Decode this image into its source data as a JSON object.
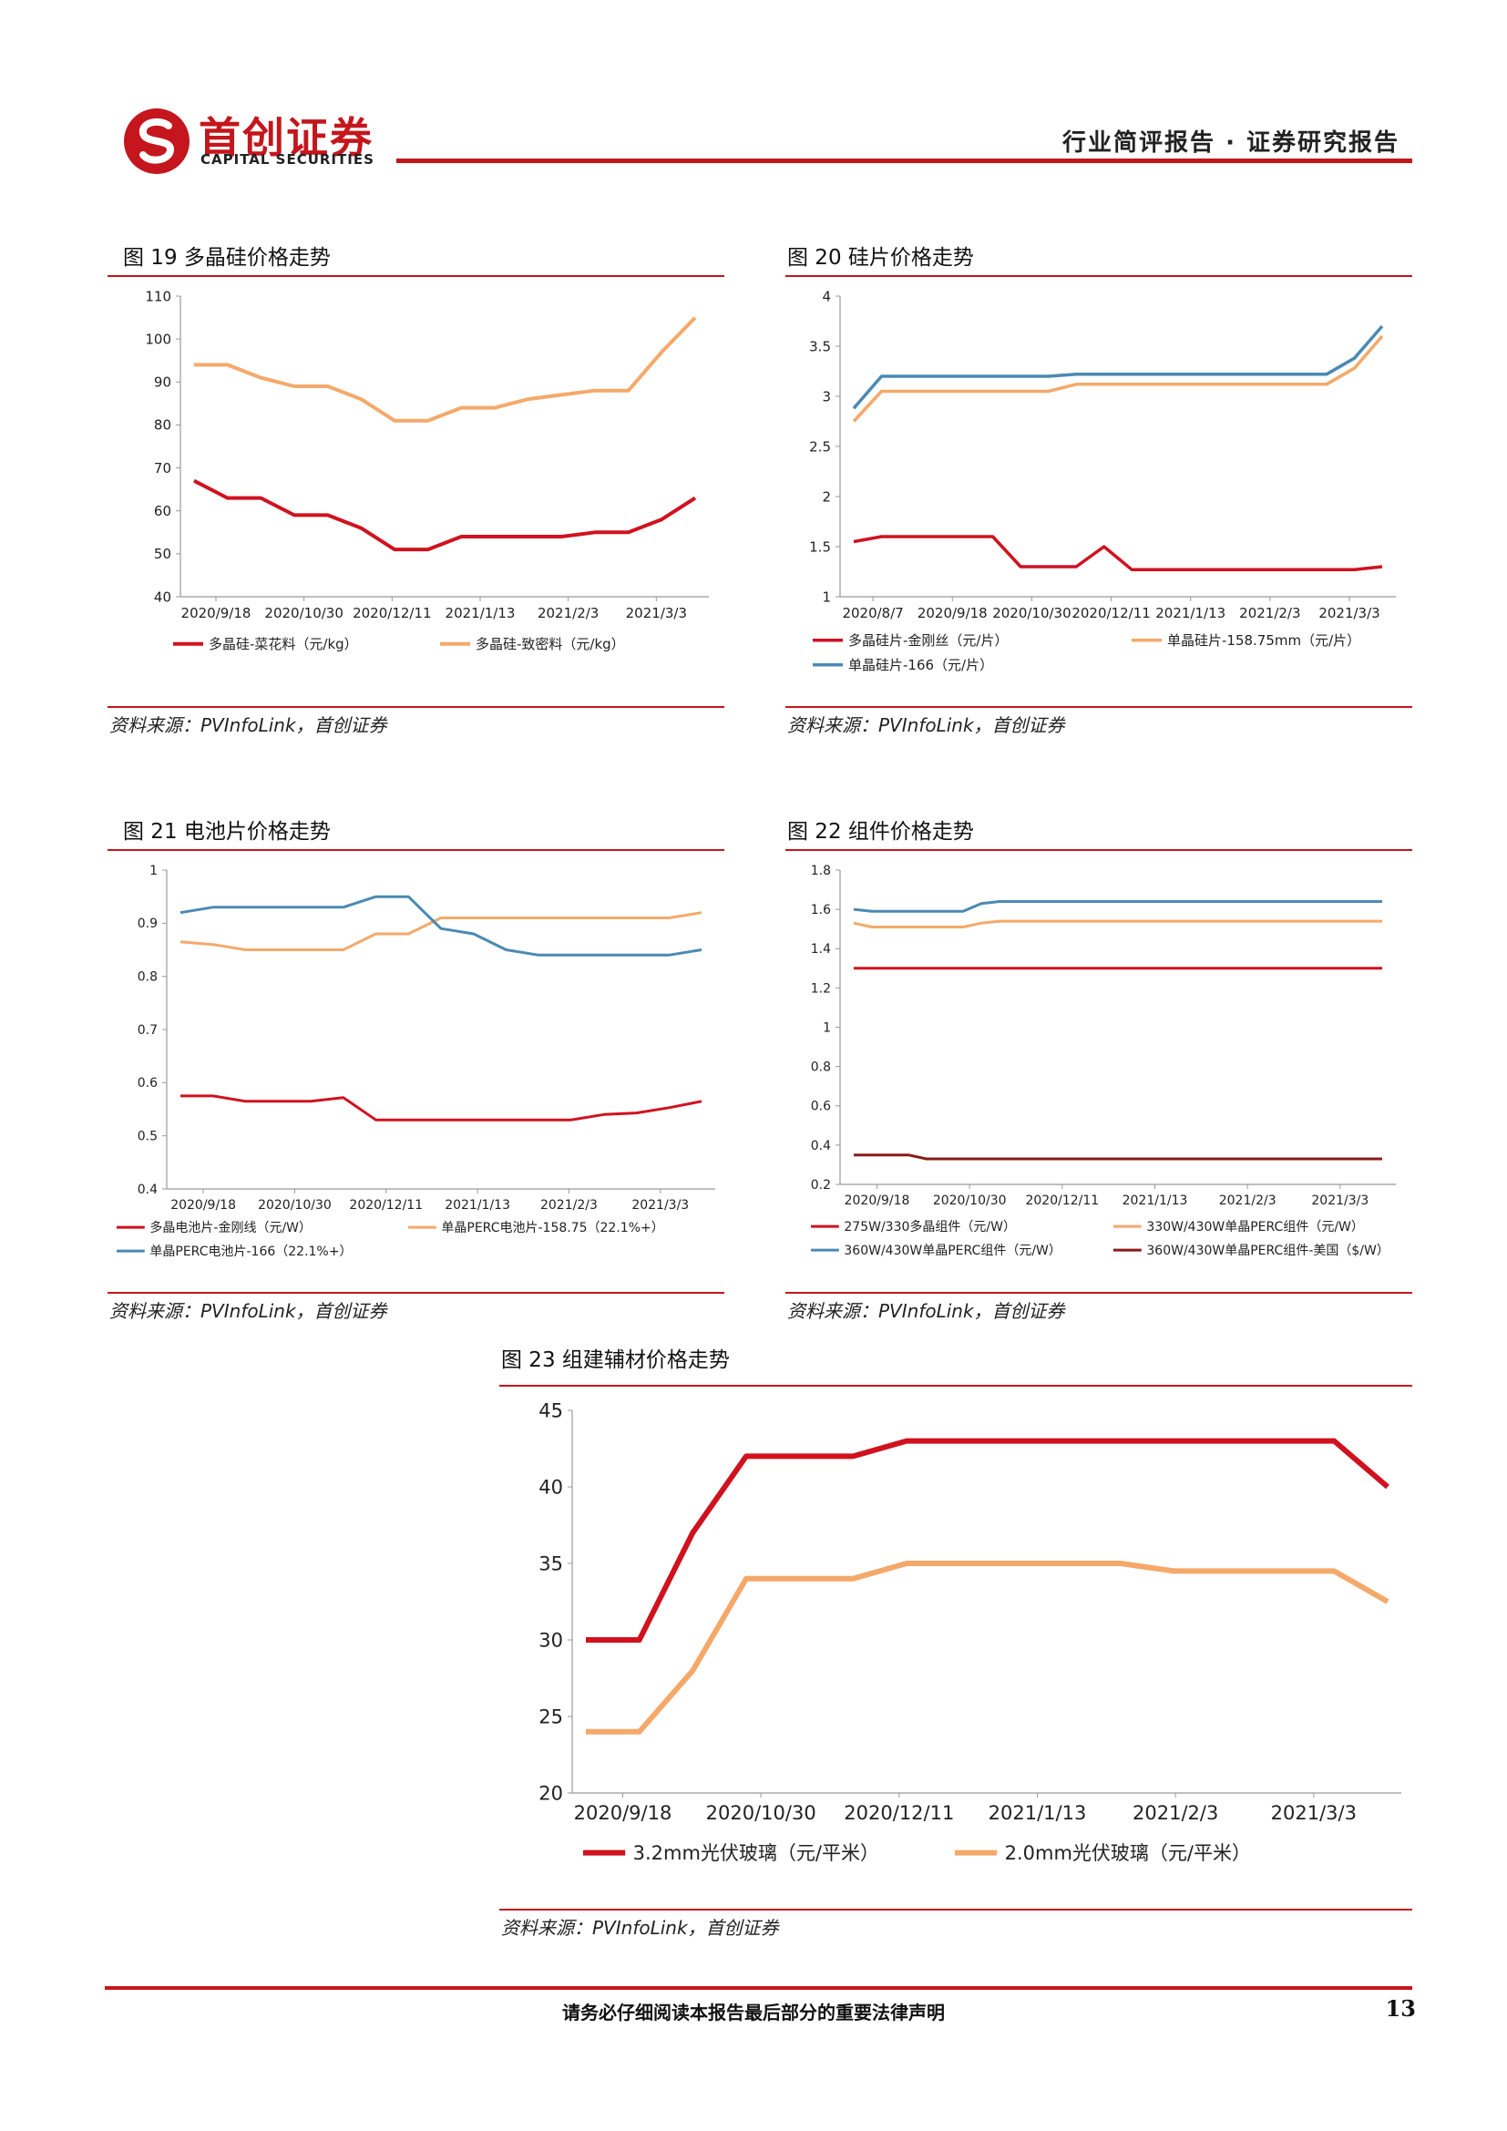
{
  "header": {
    "brand_cn": "首创证券",
    "brand_en": "CAPITAL SECURITIES",
    "report_type": "行业简评报告 · 证券研究报告",
    "brand_color": "#c4161c"
  },
  "figures": [
    {
      "title": "图 19 多晶硅价格走势",
      "source": "资料来源：PVInfoLink，首创证券"
    },
    {
      "title": "图 20 硅片价格走势",
      "source": "资料来源：PVInfoLink，首创证券"
    },
    {
      "title": "图 21 电池片价格走势",
      "source": "资料来源：PVInfoLink，首创证券"
    },
    {
      "title": "图 22 组件价格走势",
      "source": "资料来源：PVInfoLink，首创证券"
    },
    {
      "title": "图 23 组建辅材价格走势",
      "source": "资料来源：PVInfoLink，首创证券"
    }
  ],
  "chart_data": [
    {
      "type": "line",
      "x_ticks": [
        "2020/9/18",
        "2020/10/30",
        "2020/12/11",
        "2021/1/13",
        "2021/2/3",
        "2021/3/3"
      ],
      "ylim": [
        40,
        110
      ],
      "y_ticks": [
        40,
        50,
        60,
        70,
        80,
        90,
        100,
        110
      ],
      "legend": "bottom",
      "series": [
        {
          "name": "多晶硅-菜花料（元/kg）",
          "color": "#d0121f",
          "values": [
            67,
            63,
            63,
            59,
            59,
            56,
            51,
            51,
            54,
            54,
            54,
            54,
            55,
            55,
            58,
            63
          ]
        },
        {
          "name": "多晶硅-致密料（元/kg）",
          "color": "#f4a96a",
          "values": [
            94,
            94,
            91,
            89,
            89,
            86,
            81,
            81,
            84,
            84,
            86,
            87,
            88,
            88,
            97,
            105
          ]
        }
      ]
    },
    {
      "type": "line",
      "x_ticks": [
        "2020/8/7",
        "2020/9/18",
        "2020/10/30",
        "2020/12/11",
        "2021/1/13",
        "2021/2/3",
        "2021/3/3"
      ],
      "ylim": [
        1,
        4
      ],
      "y_ticks": [
        1,
        1.5,
        2,
        2.5,
        3,
        3.5,
        4
      ],
      "legend": "bottom",
      "series": [
        {
          "name": "多晶硅片-金刚丝（元/片）",
          "color": "#d0121f",
          "values": [
            1.55,
            1.6,
            1.6,
            1.6,
            1.6,
            1.6,
            1.3,
            1.3,
            1.3,
            1.5,
            1.27,
            1.27,
            1.27,
            1.27,
            1.27,
            1.27,
            1.27,
            1.27,
            1.27,
            1.3
          ]
        },
        {
          "name": "单晶硅片-158.75mm（元/片）",
          "color": "#f4a96a",
          "values": [
            2.75,
            3.05,
            3.05,
            3.05,
            3.05,
            3.05,
            3.05,
            3.05,
            3.12,
            3.12,
            3.12,
            3.12,
            3.12,
            3.12,
            3.12,
            3.12,
            3.12,
            3.12,
            3.28,
            3.6
          ]
        },
        {
          "name": "单晶硅片-166（元/片）",
          "color": "#4a8ab3",
          "values": [
            2.88,
            3.2,
            3.2,
            3.2,
            3.2,
            3.2,
            3.2,
            3.2,
            3.22,
            3.22,
            3.22,
            3.22,
            3.22,
            3.22,
            3.22,
            3.22,
            3.22,
            3.22,
            3.38,
            3.7
          ]
        }
      ]
    },
    {
      "type": "line",
      "x_ticks": [
        "2020/9/18",
        "2020/10/30",
        "2020/12/11",
        "2021/1/13",
        "2021/2/3",
        "2021/3/3"
      ],
      "ylim": [
        0.4,
        1
      ],
      "y_ticks": [
        0.4,
        0.5,
        0.6,
        0.7,
        0.8,
        0.9,
        1
      ],
      "legend": "bottom",
      "series": [
        {
          "name": "多晶电池片-金刚线（元/W）",
          "color": "#d0121f",
          "values": [
            0.575,
            0.575,
            0.565,
            0.565,
            0.565,
            0.572,
            0.53,
            0.53,
            0.53,
            0.53,
            0.53,
            0.53,
            0.53,
            0.54,
            0.543,
            0.553,
            0.565
          ]
        },
        {
          "name": "单晶PERC电池片-158.75（22.1%+）",
          "color": "#f4a96a",
          "values": [
            0.865,
            0.86,
            0.85,
            0.85,
            0.85,
            0.85,
            0.88,
            0.88,
            0.91,
            0.91,
            0.91,
            0.91,
            0.91,
            0.91,
            0.91,
            0.91,
            0.92
          ]
        },
        {
          "name": "单晶PERC电池片-166（22.1%+）",
          "color": "#4a8ab3",
          "values": [
            0.92,
            0.93,
            0.93,
            0.93,
            0.93,
            0.93,
            0.95,
            0.95,
            0.89,
            0.88,
            0.85,
            0.84,
            0.84,
            0.84,
            0.84,
            0.84,
            0.85
          ]
        }
      ]
    },
    {
      "type": "line",
      "x_ticks": [
        "2020/9/18",
        "2020/10/30",
        "2020/12/11",
        "2021/1/13",
        "2021/2/3",
        "2021/3/3"
      ],
      "ylim": [
        0.2,
        1.8
      ],
      "y_ticks": [
        0.2,
        0.4,
        0.6,
        0.8,
        1,
        1.2,
        1.4,
        1.6,
        1.8
      ],
      "legend": "bottom",
      "series": [
        {
          "name": "275W/330多晶组件（元/W）",
          "color": "#d0121f",
          "values": [
            1.3,
            1.3,
            1.3,
            1.3,
            1.3,
            1.3,
            1.3,
            1.3,
            1.3,
            1.3,
            1.3,
            1.3,
            1.3,
            1.3,
            1.3,
            1.3,
            1.3,
            1.3,
            1.3,
            1.3,
            1.3,
            1.3,
            1.3,
            1.3,
            1.3,
            1.3,
            1.3,
            1.3,
            1.3,
            1.3
          ]
        },
        {
          "name": "330W/430W单晶PERC组件（元/W）",
          "color": "#f4a96a",
          "values": [
            1.53,
            1.51,
            1.51,
            1.51,
            1.51,
            1.51,
            1.51,
            1.53,
            1.54,
            1.54,
            1.54,
            1.54,
            1.54,
            1.54,
            1.54,
            1.54,
            1.54,
            1.54,
            1.54,
            1.54,
            1.54,
            1.54,
            1.54,
            1.54,
            1.54,
            1.54,
            1.54,
            1.54,
            1.54,
            1.54
          ]
        },
        {
          "name": "360W/430W单晶PERC组件（元/W）",
          "color": "#4a8ab3",
          "values": [
            1.6,
            1.59,
            1.59,
            1.59,
            1.59,
            1.59,
            1.59,
            1.63,
            1.64,
            1.64,
            1.64,
            1.64,
            1.64,
            1.64,
            1.64,
            1.64,
            1.64,
            1.64,
            1.64,
            1.64,
            1.64,
            1.64,
            1.64,
            1.64,
            1.64,
            1.64,
            1.64,
            1.64,
            1.64,
            1.64
          ]
        },
        {
          "name": "360W/430W单晶PERC组件-美国（$/W）",
          "color": "#8b1a1a",
          "values": [
            0.35,
            0.35,
            0.35,
            0.35,
            0.33,
            0.33,
            0.33,
            0.33,
            0.33,
            0.33,
            0.33,
            0.33,
            0.33,
            0.33,
            0.33,
            0.33,
            0.33,
            0.33,
            0.33,
            0.33,
            0.33,
            0.33,
            0.33,
            0.33,
            0.33,
            0.33,
            0.33,
            0.33,
            0.33,
            0.33
          ]
        }
      ]
    },
    {
      "type": "line",
      "x_ticks": [
        "2020/9/18",
        "2020/10/30",
        "2020/12/11",
        "2021/1/13",
        "2021/2/3",
        "2021/3/3"
      ],
      "ylim": [
        20,
        45
      ],
      "y_ticks": [
        20,
        25,
        30,
        35,
        40,
        45
      ],
      "legend": "bottom",
      "series": [
        {
          "name": "3.2mm光伏玻璃（元/平米）",
          "color": "#d0121f",
          "values": [
            30,
            30,
            37,
            42,
            42,
            42,
            43,
            43,
            43,
            43,
            43,
            43,
            43,
            43,
            43,
            40
          ]
        },
        {
          "name": "2.0mm光伏玻璃（元/平米）",
          "color": "#f4a96a",
          "values": [
            24,
            24,
            28,
            34,
            34,
            34,
            35,
            35,
            35,
            35,
            35,
            34.5,
            34.5,
            34.5,
            34.5,
            32.5
          ]
        }
      ]
    }
  ],
  "footer": {
    "note": "请务必仔细阅读本报告最后部分的重要法律声明",
    "page_number": "13"
  }
}
